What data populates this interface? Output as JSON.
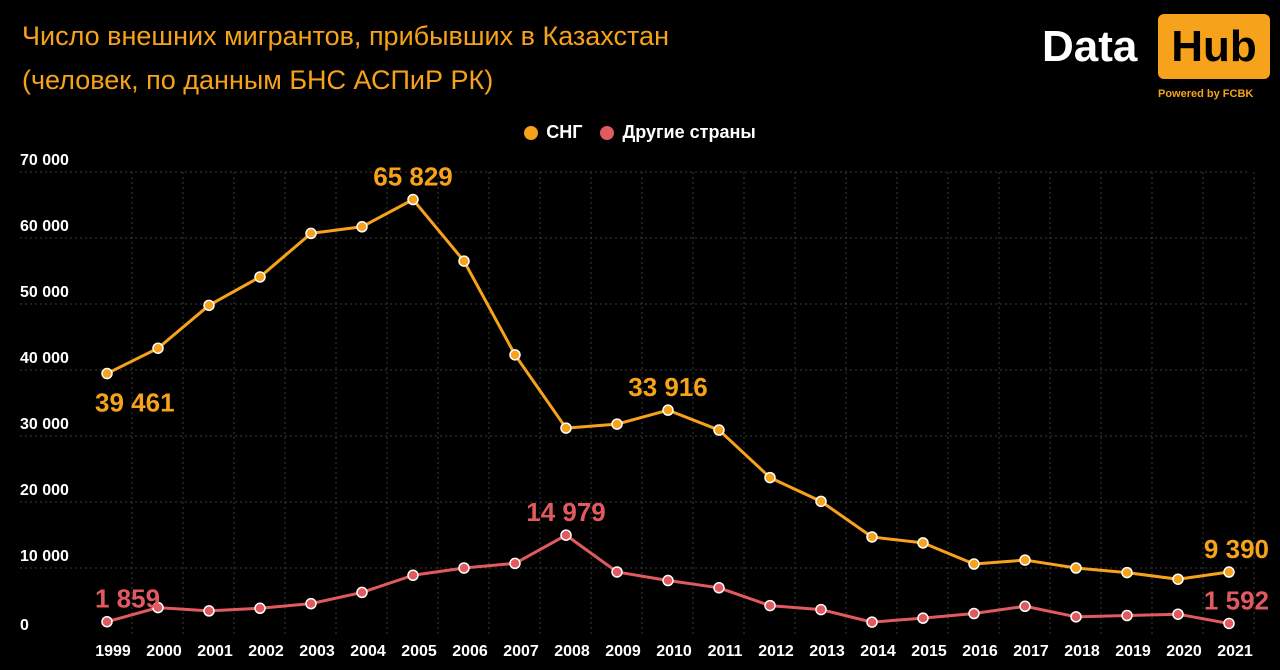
{
  "header": {
    "title_line1": "Число внешних мигрантов, прибывших в Казахстан",
    "title_line2": "(человек, по данным БНС АСПиР РК)"
  },
  "logo": {
    "word1": "Data",
    "word2": "Hub",
    "powered": "Powered by FCBK"
  },
  "colors": {
    "background": "#000000",
    "cis": "#f7a21b",
    "other": "#e05a5f",
    "grid": "#3a3a3a",
    "text": "#ffffff"
  },
  "chart_data": {
    "type": "line",
    "title": "Число внешних мигрантов, прибывших в Казахстан",
    "subtitle": "(человек, по данным БНС АСПиР РК)",
    "xlabel": "",
    "ylabel": "",
    "ylim": [
      0,
      70000
    ],
    "yticks": [
      0,
      10000,
      20000,
      30000,
      40000,
      50000,
      60000,
      70000
    ],
    "ytick_labels": [
      "0",
      "10 000",
      "20 000",
      "30 000",
      "40 000",
      "50 000",
      "60 000",
      "70 000"
    ],
    "grid": true,
    "legend_position": "top-center",
    "categories": [
      "1999",
      "2000",
      "2001",
      "2002",
      "2003",
      "2004",
      "2005",
      "2006",
      "2007",
      "2008",
      "2009",
      "2010",
      "2011",
      "2012",
      "2013",
      "2014",
      "2015",
      "2016",
      "2017",
      "2018",
      "2019",
      "2020",
      "2021"
    ],
    "series": [
      {
        "name": "СНГ",
        "color": "#f7a21b",
        "values": [
          39461,
          43300,
          49800,
          54100,
          60700,
          61700,
          65829,
          56500,
          42300,
          31200,
          31800,
          33916,
          30900,
          23700,
          20100,
          14700,
          13800,
          10600,
          11200,
          10000,
          9300,
          8300,
          9390
        ]
      },
      {
        "name": "Другие страны",
        "color": "#e05a5f",
        "values": [
          1859,
          4000,
          3500,
          3900,
          4600,
          6300,
          8900,
          10000,
          10700,
          14979,
          9400,
          8100,
          7000,
          4300,
          3700,
          1800,
          2400,
          3100,
          4200,
          2600,
          2800,
          3000,
          1592
        ]
      }
    ],
    "annotations": [
      {
        "series": 0,
        "index": 0,
        "text": "39 461",
        "placement": "below"
      },
      {
        "series": 0,
        "index": 6,
        "text": "65 829",
        "placement": "above"
      },
      {
        "series": 0,
        "index": 11,
        "text": "33 916",
        "placement": "above"
      },
      {
        "series": 0,
        "index": 22,
        "text": "9 390",
        "placement": "above"
      },
      {
        "series": 1,
        "index": 0,
        "text": "1 859",
        "placement": "above"
      },
      {
        "series": 1,
        "index": 9,
        "text": "14 979",
        "placement": "above"
      },
      {
        "series": 1,
        "index": 22,
        "text": "1 592",
        "placement": "above"
      }
    ]
  }
}
